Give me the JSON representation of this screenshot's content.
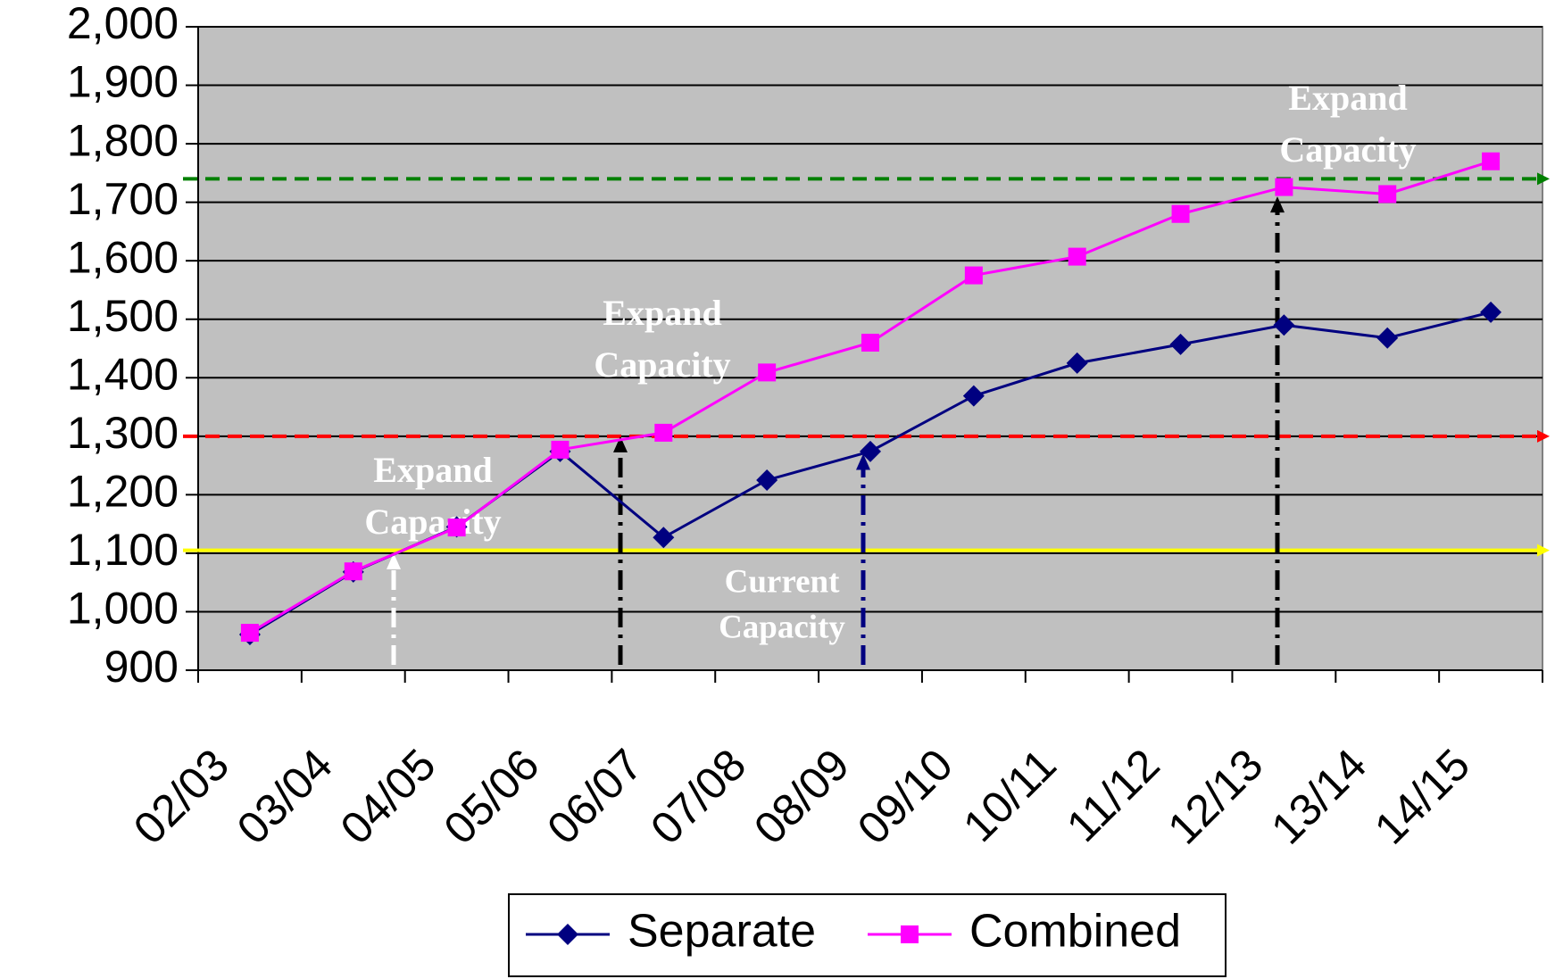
{
  "chart_data": {
    "type": "line",
    "categories": [
      "02/03",
      "03/04",
      "04/05",
      "05/06",
      "06/07",
      "07/08",
      "08/09",
      "09/10",
      "10/11",
      "11/12",
      "12/13",
      "13/14",
      "14/15"
    ],
    "series": [
      {
        "name": "Separate",
        "color": "#000080",
        "marker": "diamond",
        "values": [
          961,
          1068,
          1145,
          1274,
          1127,
          1225,
          1274,
          1369,
          1425,
          1457,
          1490,
          1468,
          1512
        ]
      },
      {
        "name": "Combined",
        "color": "#ff00ff",
        "marker": "square",
        "values": [
          964,
          1069,
          1144,
          1277,
          1306,
          1409,
          1460,
          1575,
          1607,
          1680,
          1726,
          1714,
          1770
        ]
      }
    ],
    "ylim": [
      900,
      2000
    ],
    "yticks": [
      900,
      {
        "value": 1000,
        "label": "1,000"
      },
      {
        "value": 1100,
        "label": "1,100"
      },
      {
        "value": 1200,
        "label": "1,200"
      },
      {
        "value": 1300,
        "label": "1,300"
      },
      {
        "value": 1400,
        "label": "1,400"
      },
      {
        "value": 1500,
        "label": "1,500"
      },
      {
        "value": 1600,
        "label": "1,600"
      },
      {
        "value": 1700,
        "label": "1,700"
      },
      {
        "value": 1800,
        "label": "1,800"
      },
      {
        "value": 1900,
        "label": "1,900"
      },
      {
        "value": 2000,
        "label": "2,000"
      }
    ],
    "grid": true,
    "plot_background": "#c0c0c0",
    "reference_lines": [
      {
        "value": 1740,
        "color": "#008000",
        "dashed": true
      },
      {
        "value": 1300,
        "color": "#ff0000",
        "dashed": true
      },
      {
        "value": 1105,
        "color": "#ffff00",
        "dashed": false
      }
    ],
    "annotations": [
      {
        "lines": [
          "Expand",
          "Capacity"
        ],
        "arrow_to": 1100,
        "arrow_color": "#ffffff"
      },
      {
        "lines": [
          "Expand",
          "Capacity"
        ],
        "arrow_to": 1300,
        "arrow_color": "#000000"
      },
      {
        "lines": [
          "Current",
          "Capacity"
        ],
        "arrow_to": 1270,
        "arrow_color": "#000080"
      },
      {
        "lines": [
          "Expand",
          "Capacity"
        ],
        "arrow_to": 1710,
        "arrow_color": "#000000"
      }
    ]
  }
}
